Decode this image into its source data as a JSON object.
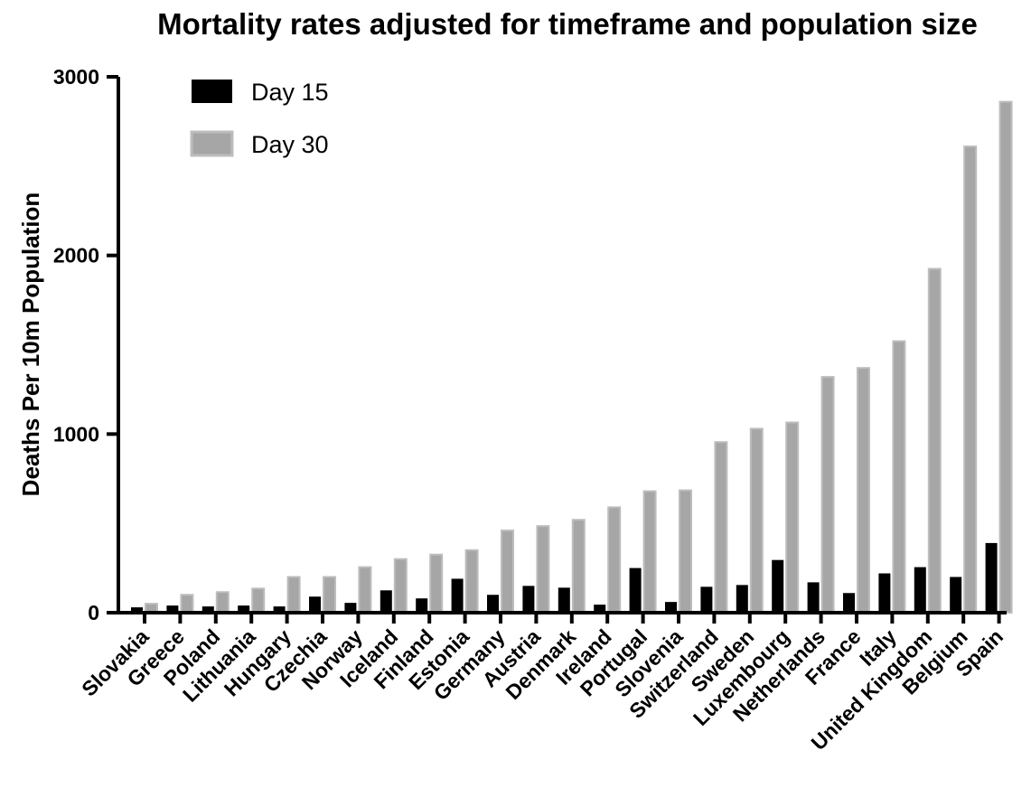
{
  "chart_data": {
    "type": "bar",
    "title": "Mortality rates adjusted for timeframe and population size",
    "xlabel": "",
    "ylabel": "Deaths Per 10m Population",
    "ylim": [
      0,
      3000
    ],
    "yticks": [
      0,
      1000,
      2000,
      3000
    ],
    "grid": false,
    "legend_position": "top-left",
    "categories": [
      "Slovakia",
      "Greece",
      "Poland",
      "Lithuania",
      "Hungary",
      "Czechia",
      "Norway",
      "Iceland",
      "Finland",
      "Estonia",
      "Germany",
      "Austria",
      "Denmark",
      "Ireland",
      "Portugal",
      "Slovenia",
      "Switzerland",
      "Sweden",
      "Luxembourg",
      "Netherlands",
      "France",
      "Italy",
      "United Kingdom",
      "Belgium",
      "Spain"
    ],
    "series": [
      {
        "name": "Day 15",
        "color": "#000000",
        "values": [
          30,
          40,
          35,
          40,
          35,
          90,
          55,
          125,
          80,
          190,
          100,
          150,
          140,
          45,
          250,
          60,
          145,
          155,
          295,
          170,
          110,
          220,
          255,
          200,
          390
        ]
      },
      {
        "name": "Day 30",
        "color": "#a6a6a6",
        "values": [
          50,
          100,
          115,
          135,
          200,
          200,
          255,
          300,
          325,
          350,
          460,
          485,
          520,
          590,
          680,
          685,
          955,
          1030,
          1065,
          1320,
          1370,
          1520,
          1925,
          2610,
          2860
        ]
      }
    ]
  }
}
